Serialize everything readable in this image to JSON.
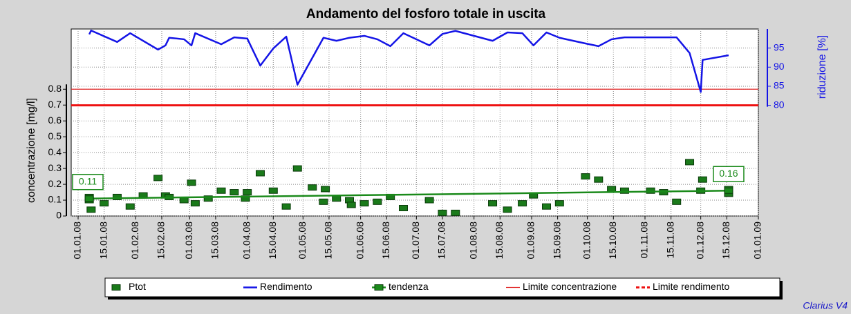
{
  "chart_data": {
    "type": "line",
    "title": "Andamento del fosforo totale in uscita",
    "y_label": "concentrazione [mg/l]",
    "y2_label": "riduzione [%]",
    "footer": "Clarius V4",
    "xlim": [
      "2008-01-01",
      "2009-01-01"
    ],
    "xticks": [
      {
        "value": "2008-01-01",
        "label": "01.01.08"
      },
      {
        "value": "2008-01-15",
        "label": "15.01.08"
      },
      {
        "value": "2008-02-01",
        "label": "01.02.08"
      },
      {
        "value": "2008-02-15",
        "label": "15.02.08"
      },
      {
        "value": "2008-03-01",
        "label": "01.03.08"
      },
      {
        "value": "2008-03-15",
        "label": "15.03.08"
      },
      {
        "value": "2008-04-01",
        "label": "01.04.08"
      },
      {
        "value": "2008-04-15",
        "label": "15.04.08"
      },
      {
        "value": "2008-05-01",
        "label": "01.05.08"
      },
      {
        "value": "2008-05-15",
        "label": "15.05.08"
      },
      {
        "value": "2008-06-01",
        "label": "01.06.08"
      },
      {
        "value": "2008-06-15",
        "label": "15.06.08"
      },
      {
        "value": "2008-07-01",
        "label": "01.07.08"
      },
      {
        "value": "2008-07-15",
        "label": "15.07.08"
      },
      {
        "value": "2008-08-01",
        "label": "01.08.08"
      },
      {
        "value": "2008-08-15",
        "label": "15.08.08"
      },
      {
        "value": "2008-09-01",
        "label": "01.09.08"
      },
      {
        "value": "2008-09-15",
        "label": "15.09.08"
      },
      {
        "value": "2008-10-01",
        "label": "01.10.08"
      },
      {
        "value": "2008-10-15",
        "label": "15.10.08"
      },
      {
        "value": "2008-11-01",
        "label": "01.11.08"
      },
      {
        "value": "2008-11-15",
        "label": "15.11.08"
      },
      {
        "value": "2008-12-01",
        "label": "01.12.08"
      },
      {
        "value": "2008-12-15",
        "label": "15.12.08"
      },
      {
        "value": "2009-01-01",
        "label": "01.01.09"
      }
    ],
    "ylim": [
      0,
      1.18
    ],
    "yticks": [
      0,
      0.1,
      0.2,
      0.3,
      0.4,
      0.5,
      0.6,
      0.7,
      0.8
    ],
    "y2lim": [
      51,
      100
    ],
    "y2ticks": [
      80,
      85,
      90,
      95
    ],
    "grid": true,
    "series": [
      {
        "name": "Ptot",
        "type": "scatter",
        "color": "#1a7a1a",
        "x": [
          "2008-01-07",
          "2008-01-07",
          "2008-01-08",
          "2008-01-15",
          "2008-01-22",
          "2008-01-29",
          "2008-02-05",
          "2008-02-13",
          "2008-02-17",
          "2008-02-19",
          "2008-02-27",
          "2008-03-02",
          "2008-03-04",
          "2008-03-11",
          "2008-03-18",
          "2008-03-25",
          "2008-03-31",
          "2008-04-01",
          "2008-04-08",
          "2008-04-15",
          "2008-04-22",
          "2008-04-28",
          "2008-05-06",
          "2008-05-12",
          "2008-05-13",
          "2008-05-19",
          "2008-05-26",
          "2008-05-27",
          "2008-06-03",
          "2008-06-10",
          "2008-06-17",
          "2008-06-24",
          "2008-07-08",
          "2008-07-15",
          "2008-07-22",
          "2008-08-11",
          "2008-08-19",
          "2008-08-27",
          "2008-09-02",
          "2008-09-09",
          "2008-09-16",
          "2008-09-30",
          "2008-10-07",
          "2008-10-14",
          "2008-10-21",
          "2008-11-04",
          "2008-11-11",
          "2008-11-18",
          "2008-11-25",
          "2008-12-01",
          "2008-12-02",
          "2008-12-16",
          "2008-12-16"
        ],
        "values": [
          0.12,
          0.1,
          0.04,
          0.08,
          0.12,
          0.06,
          0.13,
          0.24,
          0.13,
          0.12,
          0.1,
          0.21,
          0.08,
          0.11,
          0.16,
          0.15,
          0.11,
          0.15,
          0.27,
          0.16,
          0.06,
          0.3,
          0.18,
          0.09,
          0.17,
          0.11,
          0.1,
          0.07,
          0.08,
          0.09,
          0.12,
          0.05,
          0.1,
          0.02,
          0.02,
          0.08,
          0.04,
          0.08,
          0.13,
          0.06,
          0.08,
          0.25,
          0.23,
          0.17,
          0.16,
          0.16,
          0.15,
          0.09,
          0.34,
          0.16,
          0.23,
          0.17,
          0.14
        ]
      },
      {
        "name": "Rendimento",
        "type": "line",
        "axis": "y2",
        "color": "#1414e6",
        "x": [
          "2008-01-07",
          "2008-01-08",
          "2008-01-22",
          "2008-01-29",
          "2008-02-13",
          "2008-02-17",
          "2008-02-19",
          "2008-02-27",
          "2008-03-02",
          "2008-03-04",
          "2008-03-18",
          "2008-03-25",
          "2008-04-01",
          "2008-04-08",
          "2008-04-15",
          "2008-04-22",
          "2008-04-28",
          "2008-05-12",
          "2008-05-19",
          "2008-05-26",
          "2008-06-03",
          "2008-06-10",
          "2008-06-17",
          "2008-06-24",
          "2008-07-08",
          "2008-07-15",
          "2008-07-22",
          "2008-08-11",
          "2008-08-19",
          "2008-08-27",
          "2008-09-02",
          "2008-09-09",
          "2008-09-16",
          "2008-09-30",
          "2008-10-07",
          "2008-10-14",
          "2008-10-21",
          "2008-11-04",
          "2008-11-18",
          "2008-11-25",
          "2008-12-01",
          "2008-12-02",
          "2008-12-16"
        ],
        "values": [
          98.6,
          99.6,
          96.6,
          98.9,
          94.6,
          95.7,
          97.7,
          97.3,
          95.7,
          98.9,
          96.0,
          97.8,
          97.5,
          90.4,
          94.9,
          98.0,
          85.4,
          97.7,
          96.9,
          97.7,
          98.2,
          97.3,
          95.5,
          98.9,
          95.7,
          98.7,
          99.5,
          96.9,
          99.1,
          98.9,
          95.7,
          99.1,
          97.7,
          96.2,
          95.5,
          97.3,
          97.8,
          97.8,
          97.8,
          93.7,
          83.5,
          91.9,
          93.1
        ]
      },
      {
        "name": "tendenza",
        "type": "trend",
        "color": "#1a8a1a",
        "x": [
          "2008-01-07",
          "2008-12-16"
        ],
        "values": [
          0.11,
          0.16
        ]
      },
      {
        "name": "Limite concentrazione",
        "type": "hline",
        "color": "#e02020",
        "value": 0.8
      },
      {
        "name": "Limite rendimento",
        "type": "hline",
        "axis": "y2",
        "color": "#ee1111",
        "value": 80
      }
    ]
  }
}
